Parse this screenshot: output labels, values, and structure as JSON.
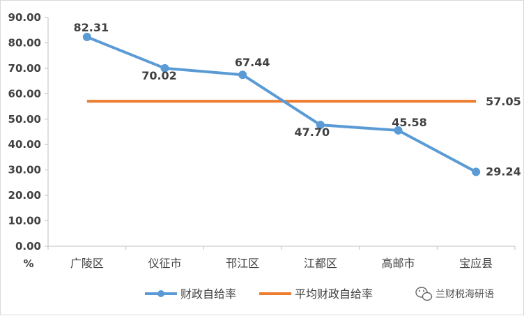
{
  "chart_data": {
    "type": "line",
    "categories": [
      "广陵区",
      "仪征市",
      "邗江区",
      "江都区",
      "高邮市",
      "宝应县"
    ],
    "series": [
      {
        "name": "财政自给率",
        "values": [
          82.31,
          70.02,
          67.44,
          47.7,
          45.58,
          29.24
        ],
        "labels": [
          "82.31",
          "70.02",
          "67.44",
          "47.70",
          "45.58",
          "29.24"
        ],
        "color": "#5b9bd5"
      },
      {
        "name": "平均财政自给率",
        "values": [
          57.05,
          57.05,
          57.05,
          57.05,
          57.05,
          57.05
        ],
        "label": "57.05",
        "color": "#ed7d31"
      }
    ],
    "ylim": [
      0,
      90
    ],
    "yticks": [
      "0.00",
      "10.00",
      "20.00",
      "30.00",
      "40.00",
      "50.00",
      "60.00",
      "70.00",
      "80.00",
      "90.00"
    ],
    "ylabel": "%",
    "legend_position": "bottom"
  },
  "watermark": {
    "icon": "wechat-icon",
    "text": "兰财税海研语"
  }
}
